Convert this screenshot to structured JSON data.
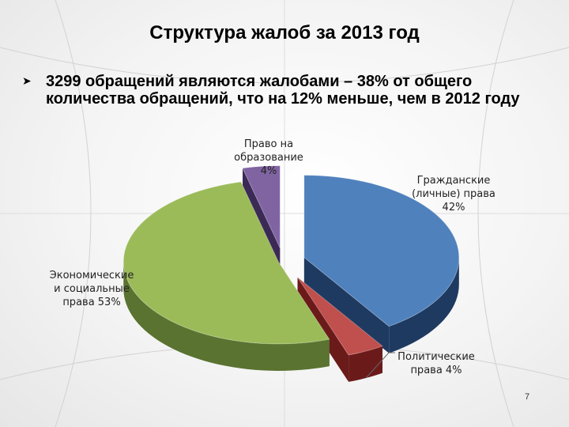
{
  "slide": {
    "title": "Структура жалоб за 2013 год",
    "bullet_icon": "arrow-bullet-icon",
    "bullet_text": "3299 обращений являются жалобами – 38% от общего количества обращений, что на 12% меньше, чем в 2012 году",
    "page_number": "7"
  },
  "chart_data": {
    "type": "pie",
    "style": "3d-exploded",
    "title": "",
    "slices": [
      {
        "name": "Гражданские (личные) права",
        "value": 42,
        "label_lines": [
          "Гражданские",
          "(личные) права",
          "42%"
        ],
        "color": "#4f81bd",
        "side_color": "#1f3a60"
      },
      {
        "name": "Политические права",
        "value": 4,
        "label_lines": [
          "Политические",
          "права 4%"
        ],
        "color": "#c0504d",
        "side_color": "#6b1a1a"
      },
      {
        "name": "Экономические и социальные права",
        "value": 53,
        "label_lines": [
          "Экономические",
          "и социальные",
          "права 53%"
        ],
        "color": "#9bbb59",
        "side_color": "#5a7330"
      },
      {
        "name": "Право на образование",
        "value": 4,
        "label_lines": [
          "Право на",
          "образование",
          "4%"
        ],
        "color": "#8064a2",
        "side_color": "#3b2a55"
      }
    ],
    "legend": "none",
    "data_labels": "outside"
  }
}
